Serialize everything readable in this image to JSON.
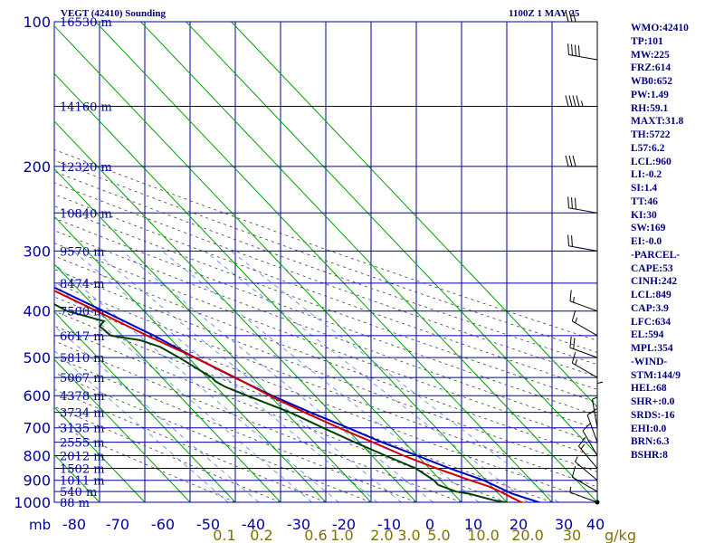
{
  "header": {
    "title": "VEGT (42410) Sounding",
    "time": "1100Z  1 MAY 25"
  },
  "stats": [
    "WMO:42410",
    "TP:101",
    "MW:225",
    "FRZ:614",
    "WB0:652",
    "PW:1.49",
    "RH:59.1",
    "MAXT:31.8",
    "TH:5722",
    "L57:6.2",
    "LCL:960",
    "LI:-0.2",
    "SI:1.4",
    "TT:46",
    "KI:30",
    "SW:169",
    "EI:-0.0",
    "-PARCEL-",
    "CAPE:53",
    "CINH:242",
    "LCL:849",
    "CAP:3.9",
    "LFC:634",
    "EL:594",
    "MPL:354",
    "-WIND-",
    "STM:144/9",
    "HEL:68",
    "SHR+:0.0",
    "SRDS:-16",
    "EHI:0.0",
    "BRN:6.3",
    "BSHR:8"
  ],
  "colors": {
    "axes": "#0000a0",
    "temperature": "#cc0000",
    "dewpoint": "#004000",
    "parcel": "#0000c0",
    "isotherm": "#00a000",
    "mixing_ratio": "#5080ff",
    "adiabat": "#404040",
    "wind": "#000000"
  },
  "chart_data": {
    "type": "skew-t",
    "pressure_ticks": [
      100,
      200,
      300,
      400,
      500,
      600,
      700,
      800,
      900,
      1000
    ],
    "pressure_unit": "mb",
    "temp_ticks": [
      "-80",
      "-70",
      "-60",
      "-50",
      "-40",
      "-30",
      "-20",
      "-10",
      "0",
      "10",
      "20",
      "30",
      "40"
    ],
    "mixing_ratio_ticks": [
      "0.1",
      "0.2",
      "0.6",
      "1.0",
      "2.0",
      "3.0",
      "5.0",
      "10.0",
      "20.0",
      "30"
    ],
    "mixing_ratio_unit": "g/kg",
    "height_labels": [
      {
        "p": 100,
        "label": "16530 m"
      },
      {
        "p": 150,
        "label": "14160 m"
      },
      {
        "p": 200,
        "label": "12320 m"
      },
      {
        "p": 250,
        "label": "10840 m"
      },
      {
        "p": 300,
        "label": "9570 m"
      },
      {
        "p": 350,
        "label": "8474 m"
      },
      {
        "p": 400,
        "label": "7500 m"
      },
      {
        "p": 450,
        "label": "6617 m"
      },
      {
        "p": 500,
        "label": "5810 m"
      },
      {
        "p": 550,
        "label": "5067 m"
      },
      {
        "p": 600,
        "label": "4378 m"
      },
      {
        "p": 650,
        "label": "3734 m"
      },
      {
        "p": 700,
        "label": "3135 m"
      },
      {
        "p": 750,
        "label": "2555 m"
      },
      {
        "p": 800,
        "label": "2012 m"
      },
      {
        "p": 850,
        "label": "1502 m"
      },
      {
        "p": 900,
        "label": "1011 m"
      },
      {
        "p": 950,
        "label": "540 m"
      },
      {
        "p": 1000,
        "label": "88 m"
      }
    ],
    "temperature": [
      [
        1004,
        23.8
      ],
      [
        1000,
        23.2
      ],
      [
        980,
        22.2
      ],
      [
        950,
        20.8
      ],
      [
        925,
        19.2
      ],
      [
        900,
        16.5
      ],
      [
        850,
        11.6
      ],
      [
        800,
        7
      ],
      [
        750,
        3
      ],
      [
        700,
        -1.5
      ],
      [
        650,
        -5.8
      ],
      [
        600,
        -10
      ],
      [
        550,
        -13.8
      ],
      [
        500,
        -18.5
      ],
      [
        450,
        -24.5
      ],
      [
        400,
        -30.5
      ],
      [
        350,
        -37.5
      ],
      [
        300,
        -46
      ],
      [
        250,
        -56
      ],
      [
        225,
        -58.5
      ],
      [
        200,
        -62
      ],
      [
        175,
        -66
      ],
      [
        150,
        -70
      ],
      [
        125,
        -76
      ],
      [
        100,
        -80
      ]
    ],
    "dewpoint": [
      [
        1004,
        20.5
      ],
      [
        990,
        17.5
      ],
      [
        960,
        13.5
      ],
      [
        950,
        11
      ],
      [
        920,
        8.5
      ],
      [
        900,
        8.5
      ],
      [
        850,
        7
      ],
      [
        800,
        3
      ],
      [
        750,
        -1
      ],
      [
        700,
        -5
      ],
      [
        650,
        -9
      ],
      [
        600,
        -15
      ],
      [
        575,
        -18
      ],
      [
        560,
        -19
      ],
      [
        550,
        -19
      ],
      [
        500,
        -22
      ],
      [
        475,
        -24
      ],
      [
        460,
        -27
      ],
      [
        450,
        -32.5
      ],
      [
        430,
        -33
      ],
      [
        420,
        -31
      ],
      [
        400,
        -37
      ],
      [
        350,
        -43
      ],
      [
        300,
        -48
      ],
      [
        280,
        -53
      ],
      [
        250,
        -56
      ],
      [
        245,
        -65
      ],
      [
        235,
        -70
      ],
      [
        225,
        -77
      ],
      [
        220,
        -74
      ],
      [
        215,
        -81
      ],
      [
        200,
        -83
      ],
      [
        180,
        -86
      ],
      [
        160,
        -95
      ],
      [
        150,
        -103
      ],
      [
        140,
        -108
      ],
      [
        100,
        -122
      ]
    ],
    "parcel": [
      [
        1004,
        27.5
      ],
      [
        960,
        23
      ],
      [
        900,
        19.5
      ],
      [
        850,
        14.5
      ],
      [
        800,
        10
      ],
      [
        750,
        5
      ],
      [
        700,
        0.5
      ],
      [
        650,
        -4.5
      ],
      [
        600,
        -9.5
      ],
      [
        550,
        -14
      ],
      [
        500,
        -18.5
      ],
      [
        450,
        -23
      ],
      [
        400,
        -29
      ],
      [
        350,
        -36
      ],
      [
        300,
        -43.5
      ],
      [
        250,
        -54.5
      ],
      [
        200,
        -66
      ],
      [
        150,
        -79
      ],
      [
        120,
        -86
      ]
    ],
    "wind": [
      {
        "p": 1000,
        "dir": 290,
        "spd": 5
      },
      {
        "p": 950,
        "dir": 300,
        "spd": 10
      },
      {
        "p": 900,
        "dir": 310,
        "spd": 5
      },
      {
        "p": 850,
        "dir": 320,
        "spd": 15
      },
      {
        "p": 800,
        "dir": 330,
        "spd": 10
      },
      {
        "p": 750,
        "dir": 340,
        "spd": 10
      },
      {
        "p": 700,
        "dir": 350,
        "spd": 5
      },
      {
        "p": 650,
        "dir": 0,
        "spd": 5
      },
      {
        "p": 550,
        "dir": 300,
        "spd": 15
      },
      {
        "p": 500,
        "dir": 290,
        "spd": 20
      },
      {
        "p": 450,
        "dir": 300,
        "spd": 15
      },
      {
        "p": 400,
        "dir": 290,
        "spd": 15
      },
      {
        "p": 300,
        "dir": 280,
        "spd": 20
      },
      {
        "p": 250,
        "dir": 280,
        "spd": 30
      },
      {
        "p": 200,
        "dir": 270,
        "spd": 30
      },
      {
        "p": 150,
        "dir": 270,
        "spd": 45
      },
      {
        "p": 120,
        "dir": 280,
        "spd": 40
      },
      {
        "p": 100,
        "dir": 270,
        "spd": 30
      }
    ]
  }
}
